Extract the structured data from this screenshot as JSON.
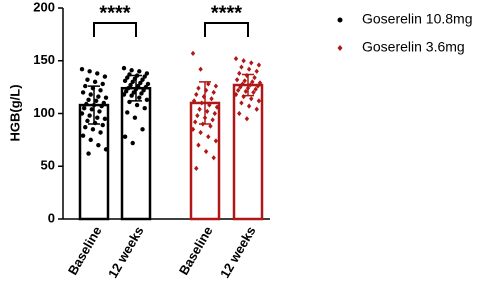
{
  "chart_data": {
    "type": "bar_scatter",
    "y_label": "HGB(g/L)",
    "categories": [
      "Baseline",
      "12 weeks",
      "Baseline",
      "12 weeks"
    ],
    "ylim": [
      0,
      200
    ],
    "yticks": [
      0,
      50,
      100,
      150,
      200
    ],
    "series": [
      {
        "name": "Goserelin 10.8mg",
        "color": "#000000",
        "marker": "circle",
        "values": [
          108,
          124,
          null,
          null
        ],
        "errors": [
          18,
          12,
          null,
          null
        ],
        "points": [
          [
            142,
            140,
            138,
            135,
            132,
            130,
            128,
            126,
            124,
            122,
            120,
            118,
            116,
            115,
            113,
            112,
            110,
            109,
            108,
            107,
            105,
            104,
            102,
            100,
            98,
            96,
            95,
            93,
            91,
            89,
            87,
            85,
            82,
            79,
            75,
            70,
            66,
            62
          ],
          [
            143,
            141,
            140,
            138,
            137,
            136,
            135,
            134,
            133,
            132,
            131,
            130,
            129,
            128,
            127,
            126,
            125,
            124,
            123,
            122,
            121,
            120,
            119,
            118,
            117,
            115,
            113,
            111,
            108,
            105,
            101,
            96,
            85,
            78,
            72
          ],
          [],
          []
        ]
      },
      {
        "name": "Goserelin 3.6mg",
        "color": "#b01818",
        "marker": "diamond",
        "values": [
          null,
          null,
          110,
          127
        ],
        "errors": [
          null,
          null,
          20,
          10
        ],
        "points": [
          [],
          [],
          [
            157,
            142,
            128,
            126,
            124,
            122,
            120,
            118,
            116,
            114,
            112,
            110,
            108,
            106,
            104,
            102,
            100,
            98,
            96,
            94,
            92,
            90,
            88,
            85,
            82,
            78,
            74,
            70,
            64,
            58,
            48
          ],
          [
            152,
            150,
            148,
            146,
            144,
            142,
            140,
            138,
            136,
            134,
            132,
            131,
            130,
            129,
            128,
            127,
            126,
            125,
            124,
            123,
            122,
            121,
            120,
            118,
            116,
            114,
            112,
            110,
            107,
            104,
            100,
            95
          ]
        ]
      }
    ],
    "annotations": [
      {
        "text": "****",
        "from": 0,
        "to": 1
      },
      {
        "text": "****",
        "from": 2,
        "to": 3
      }
    ]
  }
}
